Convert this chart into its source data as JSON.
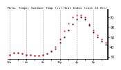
{
  "title": "Milw. Temps: Outdoor Temp (vs) Heat Index (Last 24 Hrs)",
  "bg_color": "#ffffff",
  "plot_bg": "#ffffff",
  "grid_color": "#888888",
  "temp_color": "#000000",
  "heat_color": "#ff0000",
  "ylim": [
    28,
    78
  ],
  "ytick_values": [
    30,
    40,
    50,
    60,
    70
  ],
  "ytick_labels": [
    "30",
    "40",
    "50",
    "60",
    "70"
  ],
  "ylabel_fontsize": 3.5,
  "title_fontsize": 3.2,
  "temp_data": [
    32,
    34,
    34,
    33,
    32,
    32,
    31,
    31,
    32,
    33,
    35,
    38,
    44,
    50,
    57,
    63,
    68,
    70,
    68,
    62,
    55,
    50,
    46,
    42
  ],
  "heat_data": [
    32,
    34,
    34,
    33,
    32,
    32,
    31,
    31,
    32,
    33,
    36,
    40,
    48,
    56,
    64,
    70,
    72,
    72,
    70,
    63,
    57,
    52,
    48,
    44
  ],
  "n_points": 24,
  "grid_x_positions": [
    0,
    4,
    8,
    12,
    16,
    20
  ],
  "xtick_positions": [
    0,
    2,
    4,
    6,
    8,
    10,
    12,
    14,
    16,
    18,
    20,
    22
  ],
  "xtick_labels": [
    "12a",
    "",
    "4a",
    "",
    "8a",
    "",
    "12p",
    "",
    "4p",
    "",
    "8p",
    ""
  ],
  "xlabel_fontsize": 2.8
}
